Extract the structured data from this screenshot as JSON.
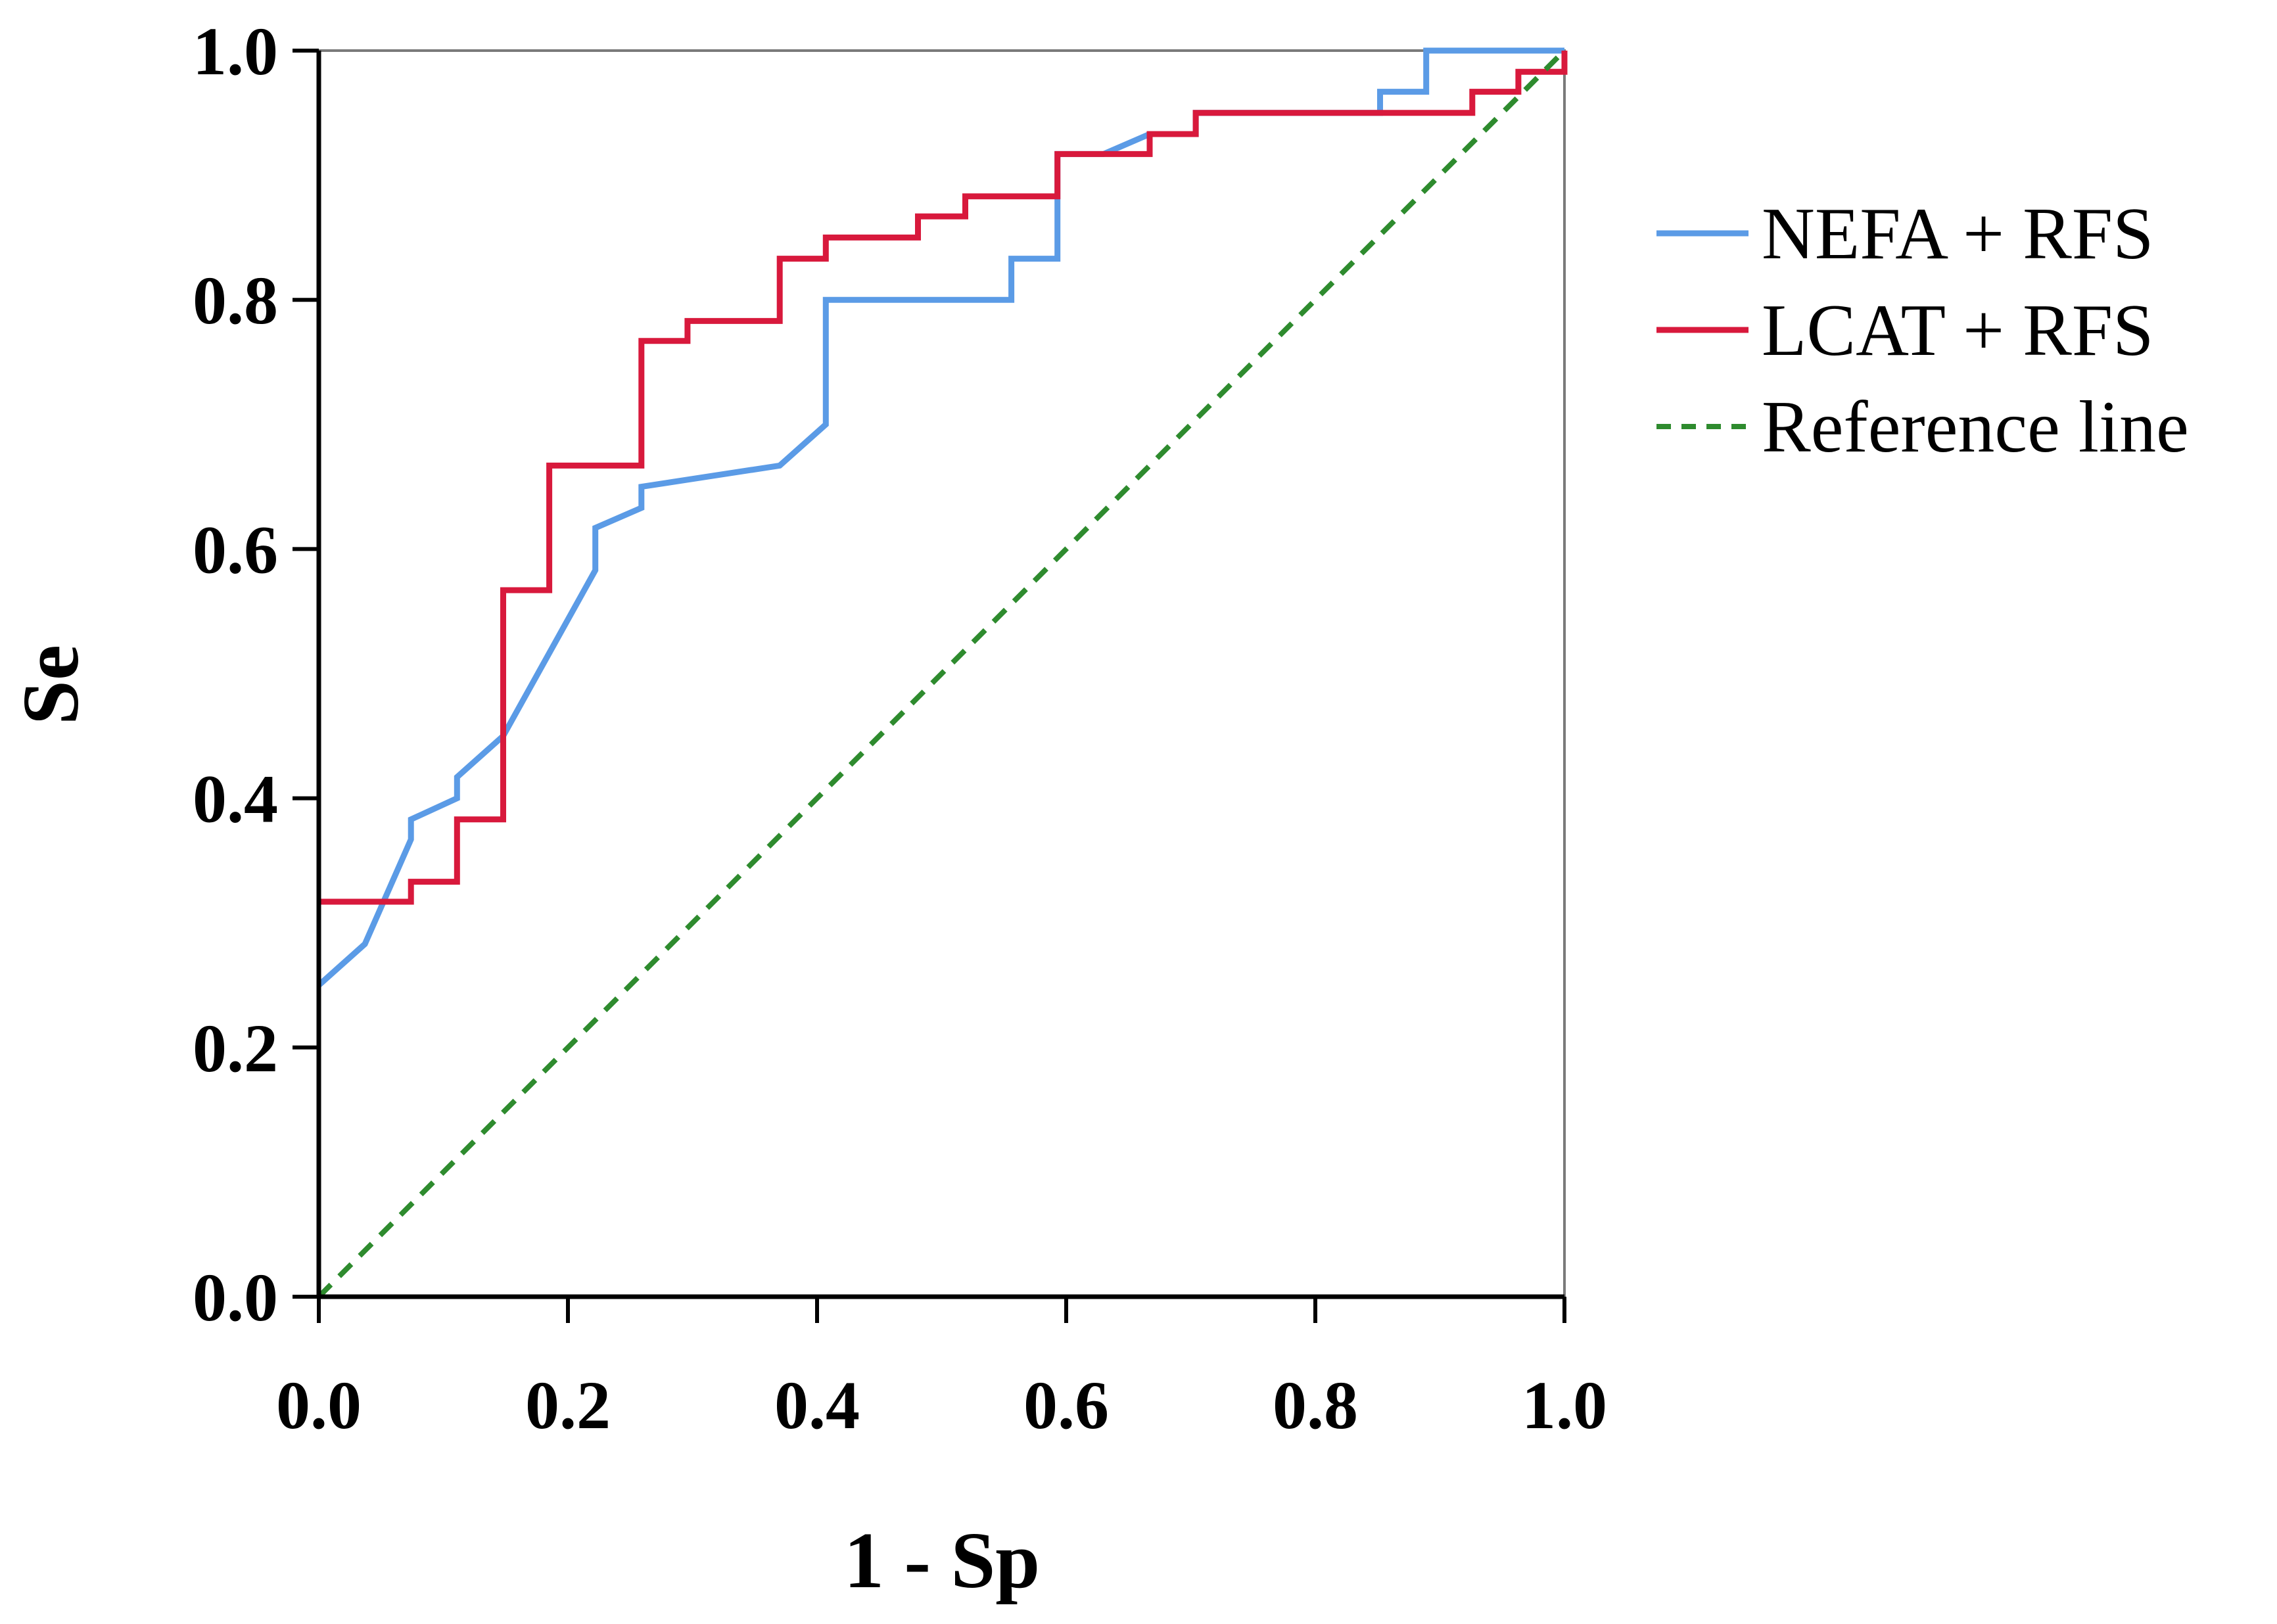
{
  "chart_data": {
    "type": "line",
    "title": "",
    "xlabel": "1 - Sp",
    "ylabel": "Se",
    "xlim": [
      0,
      1
    ],
    "ylim": [
      0,
      1
    ],
    "xticks": [
      "0.0",
      "0.2",
      "0.4",
      "0.6",
      "0.8",
      "1.0"
    ],
    "yticks": [
      "0.0",
      "0.2",
      "0.4",
      "0.6",
      "0.8",
      "1.0"
    ],
    "grid": false,
    "legend_position": "right",
    "series": [
      {
        "name": "NEFA + RFS",
        "color": "#5B9BE6",
        "style": "solid",
        "points": [
          [
            0,
            0.25
          ],
          [
            0.037,
            0.283
          ],
          [
            0.074,
            0.367
          ],
          [
            0.074,
            0.383
          ],
          [
            0.111,
            0.4
          ],
          [
            0.111,
            0.417
          ],
          [
            0.148,
            0.45
          ],
          [
            0.222,
            0.583
          ],
          [
            0.222,
            0.617
          ],
          [
            0.259,
            0.633
          ],
          [
            0.259,
            0.65
          ],
          [
            0.37,
            0.667
          ],
          [
            0.407,
            0.7
          ],
          [
            0.407,
            0.8
          ],
          [
            0.556,
            0.8
          ],
          [
            0.556,
            0.833
          ],
          [
            0.593,
            0.833
          ],
          [
            0.593,
            0.917
          ],
          [
            0.63,
            0.917
          ],
          [
            0.667,
            0.933
          ],
          [
            0.704,
            0.933
          ],
          [
            0.704,
            0.95
          ],
          [
            0.852,
            0.95
          ],
          [
            0.852,
            0.967
          ],
          [
            0.889,
            0.967
          ],
          [
            0.889,
            1.0
          ],
          [
            1.0,
            1.0
          ]
        ]
      },
      {
        "name": "LCAT + RFS",
        "color": "#D8193C",
        "style": "solid",
        "points": [
          [
            0,
            0.317
          ],
          [
            0.074,
            0.317
          ],
          [
            0.074,
            0.333
          ],
          [
            0.111,
            0.333
          ],
          [
            0.111,
            0.383
          ],
          [
            0.148,
            0.383
          ],
          [
            0.148,
            0.567
          ],
          [
            0.185,
            0.567
          ],
          [
            0.185,
            0.667
          ],
          [
            0.259,
            0.667
          ],
          [
            0.259,
            0.767
          ],
          [
            0.296,
            0.767
          ],
          [
            0.296,
            0.783
          ],
          [
            0.37,
            0.783
          ],
          [
            0.37,
            0.833
          ],
          [
            0.407,
            0.833
          ],
          [
            0.407,
            0.85
          ],
          [
            0.481,
            0.85
          ],
          [
            0.481,
            0.867
          ],
          [
            0.519,
            0.867
          ],
          [
            0.519,
            0.883
          ],
          [
            0.593,
            0.883
          ],
          [
            0.593,
            0.917
          ],
          [
            0.667,
            0.917
          ],
          [
            0.667,
            0.933
          ],
          [
            0.704,
            0.933
          ],
          [
            0.704,
            0.95
          ],
          [
            0.926,
            0.95
          ],
          [
            0.926,
            0.967
          ],
          [
            0.963,
            0.967
          ],
          [
            0.963,
            0.983
          ],
          [
            1.0,
            0.983
          ],
          [
            1.0,
            1.0
          ]
        ]
      },
      {
        "name": "Reference line",
        "color": "#2E8B2E",
        "style": "dashed",
        "points": [
          [
            0,
            0
          ],
          [
            1,
            1
          ]
        ]
      }
    ]
  }
}
